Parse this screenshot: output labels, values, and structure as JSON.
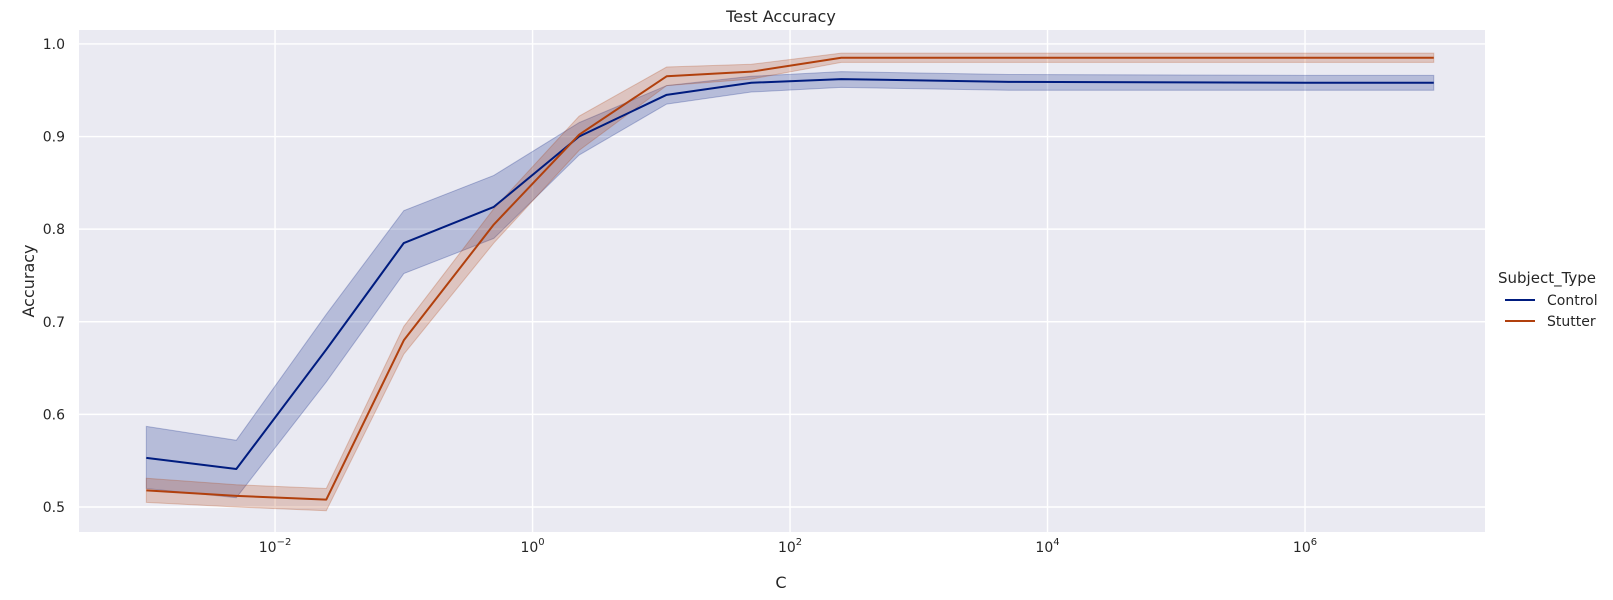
{
  "chart_data": {
    "type": "line",
    "title": "Test Accuracy",
    "xlabel": "C",
    "ylabel": "Accuracy",
    "x_scale": "log",
    "xlim": [
      0.0003,
      25000000
    ],
    "ylim": [
      0.473,
      1.015
    ],
    "grid": true,
    "x_ticks": [
      {
        "value": 0.01,
        "base": "10",
        "exp": "−2"
      },
      {
        "value": 1,
        "base": "10",
        "exp": "0"
      },
      {
        "value": 100,
        "base": "10",
        "exp": "2"
      },
      {
        "value": 10000,
        "base": "10",
        "exp": "4"
      },
      {
        "value": 1000000,
        "base": "10",
        "exp": "6"
      }
    ],
    "y_ticks": [
      {
        "value": 0.5,
        "label": "0.5"
      },
      {
        "value": 0.6,
        "label": "0.6"
      },
      {
        "value": 0.7,
        "label": "0.7"
      },
      {
        "value": 0.8,
        "label": "0.8"
      },
      {
        "value": 0.9,
        "label": "0.9"
      },
      {
        "value": 1.0,
        "label": "1.0"
      }
    ],
    "x": [
      0.001,
      0.005,
      0.025,
      0.1,
      0.5,
      2.3,
      11,
      50,
      250,
      5000,
      1000000,
      10000000
    ],
    "legend": {
      "title": "Subject_Type",
      "position": "right"
    },
    "series": [
      {
        "name": "Control",
        "color": "#001c7f",
        "values": [
          0.553,
          0.541,
          0.67,
          0.785,
          0.824,
          0.9,
          0.945,
          0.958,
          0.962,
          0.959,
          0.958,
          0.958
        ],
        "lower": [
          0.52,
          0.51,
          0.635,
          0.752,
          0.79,
          0.88,
          0.935,
          0.948,
          0.953,
          0.95,
          0.95,
          0.95
        ],
        "upper": [
          0.587,
          0.572,
          0.708,
          0.82,
          0.858,
          0.915,
          0.955,
          0.965,
          0.97,
          0.967,
          0.966,
          0.966
        ]
      },
      {
        "name": "Stutter",
        "color": "#b1400d",
        "values": [
          0.518,
          0.512,
          0.508,
          0.68,
          0.805,
          0.902,
          0.965,
          0.97,
          0.985,
          0.985,
          0.985,
          0.985
        ],
        "lower": [
          0.505,
          0.5,
          0.496,
          0.665,
          0.785,
          0.885,
          0.955,
          0.962,
          0.98,
          0.98,
          0.98,
          0.98
        ],
        "upper": [
          0.531,
          0.524,
          0.52,
          0.695,
          0.822,
          0.922,
          0.975,
          0.978,
          0.99,
          0.99,
          0.99,
          0.99
        ]
      }
    ]
  }
}
